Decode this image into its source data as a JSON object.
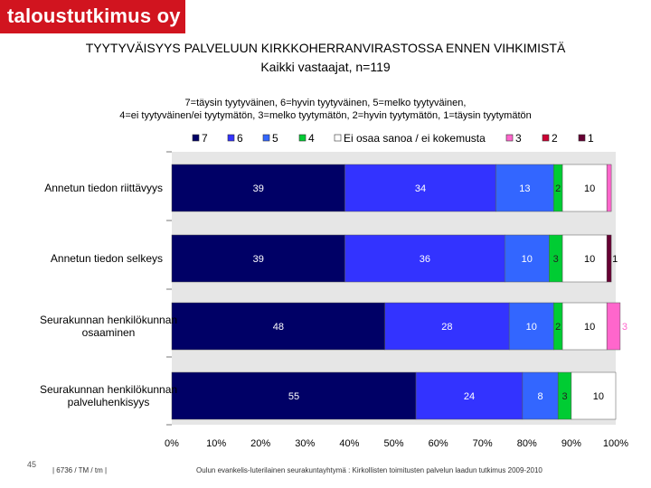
{
  "header": {
    "logo_text": "taloustutkimus oy",
    "title_line1": "TYYTYVÄISYYS PALVELUUN KIRKKOHERRANVIRASTOSSA ENNEN VIHKIMISTÄ",
    "title_line2": "Kaikki  vastaajat, n=119",
    "scale_line1": "7=täysin tyytyväinen, 6=hyvin tyytyväinen, 5=melko tyytyväinen,",
    "scale_line2": "4=ei tyytyväinen/ei tyytymätön, 3=melko tyytymätön, 2=hyvin tyytymätön, 1=täysin tyytymätön"
  },
  "footer": {
    "page_number": "45",
    "study_code": "| 6736 / TM / tm |",
    "source": "Oulun evankelis-luterilainen seurakuntayhtymä : Kirkollisten toimitusten palvelun laadun tutkimus 2009-2010"
  },
  "colors": {
    "7": "#000066",
    "6": "#3333ff",
    "5": "#3366ff",
    "4": "#00cc33",
    "eos": "#ffffff",
    "3": "#ff66cc",
    "2": "#cc0033",
    "1": "#660033",
    "plot_bg": "#e6e6e6",
    "label_light": "#ffffff",
    "label_dark": "#000000",
    "label_pink": "#ff66cc"
  },
  "chart_data": {
    "type": "bar",
    "orientation": "horizontal",
    "stacked": true,
    "categories": [
      "Annetun tiedon riittävyys",
      "Annetun tiedon selkeys",
      "Seurakunnan henkilökunnan osaaminen",
      "Seurakunnan henkilökunnan palveluhenkisyys"
    ],
    "category_lines": [
      [
        "Annetun tiedon riittävyys"
      ],
      [
        "Annetun tiedon selkeys"
      ],
      [
        "Seurakunnan henkilökunnan",
        "osaaminen"
      ],
      [
        "Seurakunnan henkilökunnan",
        "palveluhenkisyys"
      ]
    ],
    "series": [
      {
        "key": "7",
        "name": "7",
        "values": [
          39,
          39,
          48,
          55
        ]
      },
      {
        "key": "6",
        "name": "6",
        "values": [
          34,
          36,
          28,
          24
        ]
      },
      {
        "key": "5",
        "name": "5",
        "values": [
          13,
          10,
          10,
          8
        ]
      },
      {
        "key": "4",
        "name": "4",
        "values": [
          2,
          3,
          2,
          3
        ]
      },
      {
        "key": "eos",
        "name": "Ei osaa sanoa / ei kokemusta",
        "values": [
          10,
          10,
          10,
          10
        ]
      },
      {
        "key": "3",
        "name": "3",
        "values": [
          1,
          0,
          3,
          0
        ]
      },
      {
        "key": "2",
        "name": "2",
        "values": [
          0,
          0,
          0,
          0
        ]
      },
      {
        "key": "1",
        "name": "1",
        "values": [
          0,
          1,
          0,
          0
        ]
      }
    ],
    "data_labels": [
      [
        {
          "s": 0,
          "text": "39"
        },
        {
          "s": 1,
          "text": "34"
        },
        {
          "s": 2,
          "text": "13"
        },
        {
          "s": 3,
          "text": "2"
        },
        {
          "s": 4,
          "text": "10"
        }
      ],
      [
        {
          "s": 0,
          "text": "39"
        },
        {
          "s": 1,
          "text": "36"
        },
        {
          "s": 2,
          "text": "10"
        },
        {
          "s": 3,
          "text": "3"
        },
        {
          "s": 4,
          "text": "10"
        },
        {
          "s": 7,
          "text": "1"
        }
      ],
      [
        {
          "s": 0,
          "text": "48"
        },
        {
          "s": 1,
          "text": "28"
        },
        {
          "s": 2,
          "text": "10"
        },
        {
          "s": 3,
          "text": "2"
        },
        {
          "s": 4,
          "text": "10"
        },
        {
          "s": 5,
          "text": "3"
        }
      ],
      [
        {
          "s": 0,
          "text": "55"
        },
        {
          "s": 1,
          "text": "24"
        },
        {
          "s": 2,
          "text": "8"
        },
        {
          "s": 3,
          "text": "3"
        },
        {
          "s": 4,
          "text": "10"
        }
      ]
    ],
    "x_ticks": [
      0,
      10,
      20,
      30,
      40,
      50,
      60,
      70,
      80,
      90,
      100
    ],
    "x_tick_labels": [
      "0%",
      "10%",
      "20%",
      "30%",
      "40%",
      "50%",
      "60%",
      "70%",
      "80%",
      "90%",
      "100%"
    ],
    "xlim": [
      0,
      100
    ],
    "legend_labels": [
      "7",
      "6",
      "5",
      "4",
      "Ei osaa sanoa / ei kokemusta",
      "3",
      "2",
      "1"
    ],
    "legend_position": "top",
    "grid": false
  }
}
